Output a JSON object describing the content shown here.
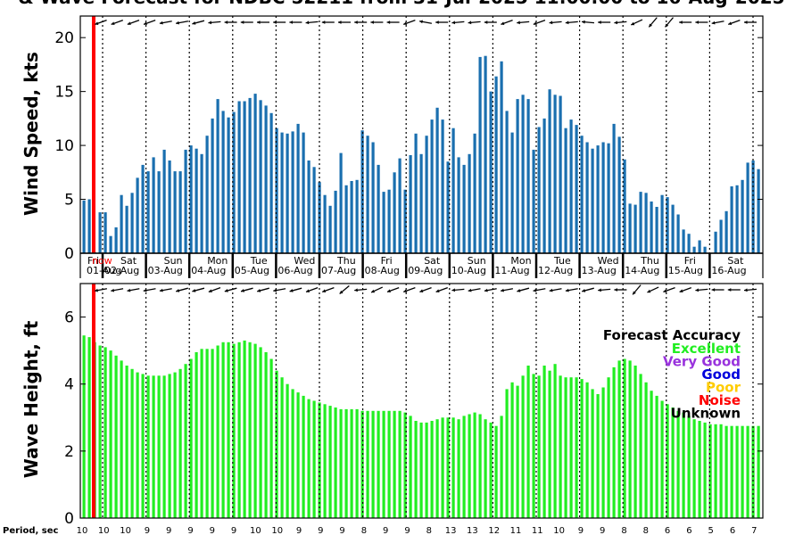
{
  "title": "& Wave Forecast for NDBC 52211 from 31-Jul-2025 11:00:00 to 16-Aug-2025",
  "colors": {
    "wind_bar": "#1a6faf",
    "wave_bar": "#22ee22",
    "now_line": "#ff0000",
    "legend_excellent": "#22ee22",
    "legend_very_good": "#9933dd",
    "legend_good": "#0000dd",
    "legend_poor": "#ffcc00",
    "legend_noise": "#ff0000",
    "legend_unknown": "#000000"
  },
  "day_labels": {
    "weekdays": [
      "Fri",
      "Sat",
      "Sun",
      "Mon",
      "Tue",
      "Wed",
      "Thu",
      "Fri",
      "Sat",
      "Sun",
      "Mon",
      "Tue",
      "Wed",
      "Thu",
      "Fri",
      "Sat"
    ],
    "dates": [
      "01-Aug",
      "02-Aug",
      "03-Aug",
      "04-Aug",
      "05-Aug",
      "06-Aug",
      "07-Aug",
      "08-Aug",
      "09-Aug",
      "10-Aug",
      "11-Aug",
      "12-Aug",
      "13-Aug",
      "14-Aug",
      "15-Aug",
      "16-Aug"
    ],
    "now_label": "now"
  },
  "legend": {
    "title": "Forecast Accuracy",
    "items": [
      "Excellent",
      "Very Good",
      "Good",
      "Poor",
      "Noise",
      "Unknown"
    ]
  },
  "period_label": "Period, sec",
  "period_values": [
    "10",
    "10",
    "10",
    "9",
    "9",
    "9",
    "9",
    "9",
    "10",
    "10",
    "9",
    "9",
    "9",
    "8",
    "9",
    "9",
    "8",
    "13",
    "13",
    "12",
    "11",
    "11",
    "10",
    "9",
    "9",
    "8",
    "8",
    "6",
    "6",
    "5",
    "6",
    "7",
    "7",
    "7",
    "8",
    "9",
    "9",
    "8",
    "8",
    "8",
    "7",
    "7",
    "7",
    "7",
    "8",
    "8",
    "9",
    "9",
    "8",
    "8",
    "8",
    "8"
  ],
  "chart_data": [
    {
      "type": "bar",
      "ylabel": "Wind Speed, kts",
      "ylim": [
        0,
        22
      ],
      "yticks": [
        0,
        5,
        10,
        15,
        20
      ],
      "grid": false,
      "x_unit": "3-hourly forecast steps from 31-Jul-2025 11:00",
      "values": [
        4.9,
        5.0,
        0.1,
        3.8,
        3.8,
        1.6,
        2.4,
        5.4,
        4.4,
        5.6,
        7.0,
        8.2,
        7.6,
        8.9,
        7.6,
        9.6,
        8.6,
        7.6,
        7.6,
        9.6,
        10.0,
        9.7,
        9.2,
        10.9,
        12.5,
        14.3,
        13.2,
        12.6,
        13.1,
        14.1,
        14.1,
        14.4,
        14.8,
        14.2,
        13.7,
        13.0,
        11.6,
        11.2,
        11.1,
        11.3,
        12.0,
        11.2,
        8.6,
        8.0,
        6.6,
        5.4,
        4.4,
        5.8,
        9.3,
        6.3,
        6.7,
        6.8,
        11.4,
        10.9,
        10.3,
        8.2,
        5.7,
        5.9,
        7.5,
        8.8,
        5.9,
        9.1,
        11.1,
        9.2,
        10.9,
        12.4,
        13.5,
        12.4,
        8.5,
        11.6,
        8.9,
        8.2,
        9.2,
        11.1,
        18.2,
        18.3,
        15.0,
        16.4,
        17.8,
        13.2,
        11.2,
        14.3,
        14.7,
        14.3,
        9.6,
        11.7,
        12.5,
        15.2,
        14.7,
        14.6,
        11.6,
        12.4,
        11.9,
        10.9,
        10.3,
        9.7,
        10.0,
        10.3,
        10.2,
        12.0,
        10.8,
        8.7,
        4.6,
        4.5,
        5.7,
        5.6,
        4.8,
        4.3,
        5.4,
        5.2,
        4.5,
        3.6,
        2.2,
        1.8,
        0.6,
        1.2,
        0.6,
        0.0,
        2.0,
        3.1,
        3.9,
        6.2,
        6.3,
        6.8,
        8.4,
        8.6,
        7.8,
        9.1,
        10.9
      ]
    },
    {
      "type": "bar",
      "ylabel": "Wave Height, ft",
      "ylim": [
        0,
        7
      ],
      "yticks": [
        0,
        2,
        4,
        6
      ],
      "grid": false,
      "x_unit": "3-hourly forecast steps from 31-Jul-2025 11:00",
      "values": [
        5.45,
        5.4,
        5.25,
        5.15,
        5.1,
        5.0,
        4.85,
        4.7,
        4.55,
        4.45,
        4.35,
        4.3,
        4.25,
        4.25,
        4.25,
        4.25,
        4.3,
        4.35,
        4.45,
        4.6,
        4.75,
        4.95,
        5.05,
        5.05,
        5.05,
        5.15,
        5.25,
        5.25,
        5.2,
        5.25,
        5.3,
        5.25,
        5.2,
        5.1,
        4.95,
        4.75,
        4.4,
        4.2,
        4.0,
        3.85,
        3.75,
        3.65,
        3.55,
        3.5,
        3.45,
        3.4,
        3.35,
        3.3,
        3.25,
        3.25,
        3.25,
        3.25,
        3.2,
        3.2,
        3.2,
        3.2,
        3.2,
        3.2,
        3.2,
        3.2,
        3.15,
        3.05,
        2.9,
        2.85,
        2.85,
        2.9,
        2.95,
        3.0,
        3.0,
        3.0,
        2.95,
        3.05,
        3.1,
        3.15,
        3.1,
        2.95,
        2.85,
        2.75,
        3.05,
        3.85,
        4.05,
        3.95,
        4.25,
        4.55,
        4.3,
        4.25,
        4.55,
        4.4,
        4.6,
        4.25,
        4.2,
        4.2,
        4.2,
        4.15,
        4.05,
        3.85,
        3.7,
        3.9,
        4.2,
        4.5,
        4.7,
        4.75,
        4.7,
        4.55,
        4.3,
        4.05,
        3.8,
        3.65,
        3.5,
        3.4,
        3.3,
        3.2,
        3.15,
        3.05,
        2.95,
        2.9,
        2.85,
        2.8,
        2.8,
        2.8,
        2.75,
        2.75,
        2.75,
        2.75,
        2.75,
        2.75,
        2.75,
        2.8,
        2.85,
        2.9,
        3.0,
        3.1
      ]
    }
  ],
  "wind_dirs": [
    160,
    160,
    160,
    160,
    170,
    170,
    165,
    175,
    180,
    180,
    180,
    180,
    180,
    175,
    180,
    180,
    180,
    180,
    180,
    160,
    190,
    180,
    175,
    175,
    180,
    160,
    175,
    160,
    175,
    175,
    185,
    180,
    175,
    155,
    130,
    130,
    180,
    180,
    170,
    160,
    180,
    180
  ],
  "wave_dirs": [
    170,
    170,
    170,
    170,
    170,
    165,
    165,
    160,
    165,
    165,
    165,
    170,
    165,
    160,
    160,
    140,
    175,
    155,
    160,
    160,
    160,
    160,
    175,
    170,
    170,
    170,
    165,
    170,
    170,
    170,
    165,
    175,
    180,
    130,
    155,
    160,
    160,
    175,
    180,
    180,
    175,
    175
  ]
}
